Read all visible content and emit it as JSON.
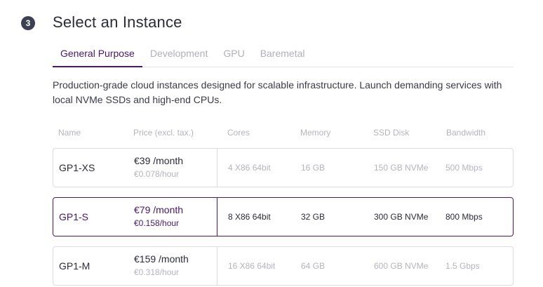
{
  "step": {
    "number": "3",
    "title": "Select an Instance"
  },
  "tabs": [
    {
      "label": "General Purpose",
      "active": true
    },
    {
      "label": "Development",
      "active": false
    },
    {
      "label": "GPU",
      "active": false
    },
    {
      "label": "Baremetal",
      "active": false
    }
  ],
  "description": "Production-grade cloud instances designed for scalable infrastructure. Launch demanding services with local NVMe SSDs and high-end CPUs.",
  "table": {
    "headers": {
      "name": "Name",
      "price": "Price (excl. tax.)",
      "cores": "Cores",
      "memory": "Memory",
      "ssd": "SSD Disk",
      "bandwidth": "Bandwidth"
    },
    "rows": [
      {
        "name": "GP1-XS",
        "price_month": "€39 /month",
        "price_hour": "€0.078/hour",
        "cores": "4 X86 64bit",
        "memory": "16 GB",
        "ssd": "150 GB NVMe",
        "bandwidth": "500 Mbps",
        "selected": false
      },
      {
        "name": "GP1-S",
        "price_month": "€79 /month",
        "price_hour": "€0.158/hour",
        "cores": "8 X86 64bit",
        "memory": "32 GB",
        "ssd": "300 GB NVMe",
        "bandwidth": "800 Mbps",
        "selected": true
      },
      {
        "name": "GP1-M",
        "price_month": "€159 /month",
        "price_hour": "€0.318/hour",
        "cores": "16 X86 64bit",
        "memory": "64 GB",
        "ssd": "600 GB NVMe",
        "bandwidth": "1.5 Gbps",
        "selected": false
      }
    ]
  },
  "colors": {
    "accent": "#4a1672",
    "muted": "#b4b4be",
    "border": "#dcdce3"
  }
}
